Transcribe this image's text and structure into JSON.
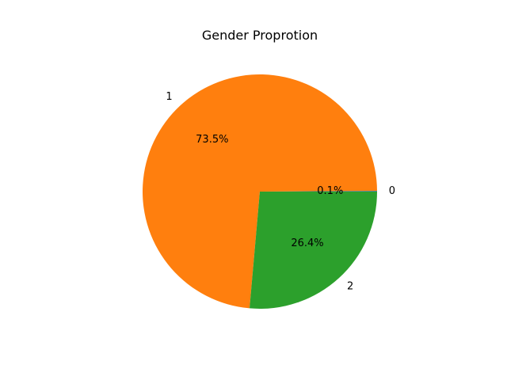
{
  "chart_data": {
    "type": "pie",
    "title": "Gender Proprotion",
    "labels": [
      "0",
      "1",
      "2"
    ],
    "values": [
      0.1,
      73.5,
      26.4
    ],
    "value_labels": [
      "0.1%",
      "73.5%",
      "26.4%"
    ],
    "colors": [
      "#1f77b4",
      "#ff7f0e",
      "#2ca02c"
    ],
    "start_angle_deg": 0,
    "direction": "counterclockwise",
    "legend": "none"
  }
}
